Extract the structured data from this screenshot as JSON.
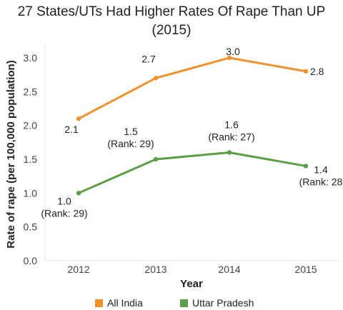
{
  "chart_data": {
    "type": "line",
    "title": "27 States/UTs Had Higher Rates Of Rape Than UP (2015)",
    "xlabel": "Year",
    "ylabel": "Rate of rape (per 100,000 population)",
    "categories": [
      "2012",
      "2013",
      "2014",
      "2015"
    ],
    "ylim": [
      0,
      3.2
    ],
    "yticks": [
      "0.0",
      "0.5",
      "1.0",
      "1.5",
      "2.0",
      "2.5",
      "3.0"
    ],
    "legend": "bottom",
    "series": [
      {
        "name": "All India",
        "color": "#f0912b",
        "values": [
          2.1,
          2.7,
          3.0,
          2.8
        ],
        "labels": [
          [
            "2.1"
          ],
          [
            "2.7"
          ],
          [
            "3.0"
          ],
          [
            "2.8"
          ]
        ]
      },
      {
        "name": "Uttar Pradesh",
        "color": "#5a9f45",
        "values": [
          1.0,
          1.5,
          1.6,
          1.4
        ],
        "labels": [
          [
            "1.0",
            "(Rank: 29)"
          ],
          [
            "1.5",
            "(Rank: 29)"
          ],
          [
            "1.6",
            "(Rank: 27)"
          ],
          [
            "1.4",
            "(Rank: 28"
          ]
        ]
      }
    ]
  }
}
